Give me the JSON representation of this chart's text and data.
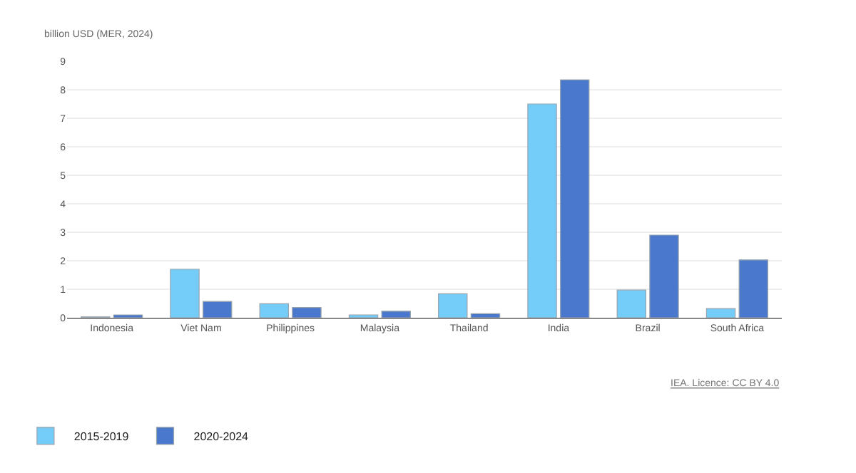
{
  "chart_data": {
    "type": "bar",
    "ylabel": "billion USD (MER, 2024)",
    "categories": [
      "Indonesia",
      "Viet Nam",
      "Philippines",
      "Malaysia",
      "Thailand",
      "India",
      "Brazil",
      "South Africa"
    ],
    "series": [
      {
        "name": "2015-2019",
        "color": "#73cdf8",
        "values": [
          0.03,
          1.7,
          0.49,
          0.1,
          0.84,
          7.5,
          0.97,
          0.32
        ]
      },
      {
        "name": "2020-2024",
        "color": "#4a78cc",
        "values": [
          0.1,
          0.57,
          0.36,
          0.23,
          0.14,
          8.35,
          2.9,
          2.03
        ]
      }
    ],
    "ylim": [
      0,
      9
    ],
    "yticks": [
      0,
      1,
      2,
      3,
      4,
      5,
      6,
      7,
      8,
      9
    ],
    "grid": "y",
    "legend": "bottom left",
    "annotations": [
      "IEA. Licence: CC BY 4.0"
    ]
  }
}
